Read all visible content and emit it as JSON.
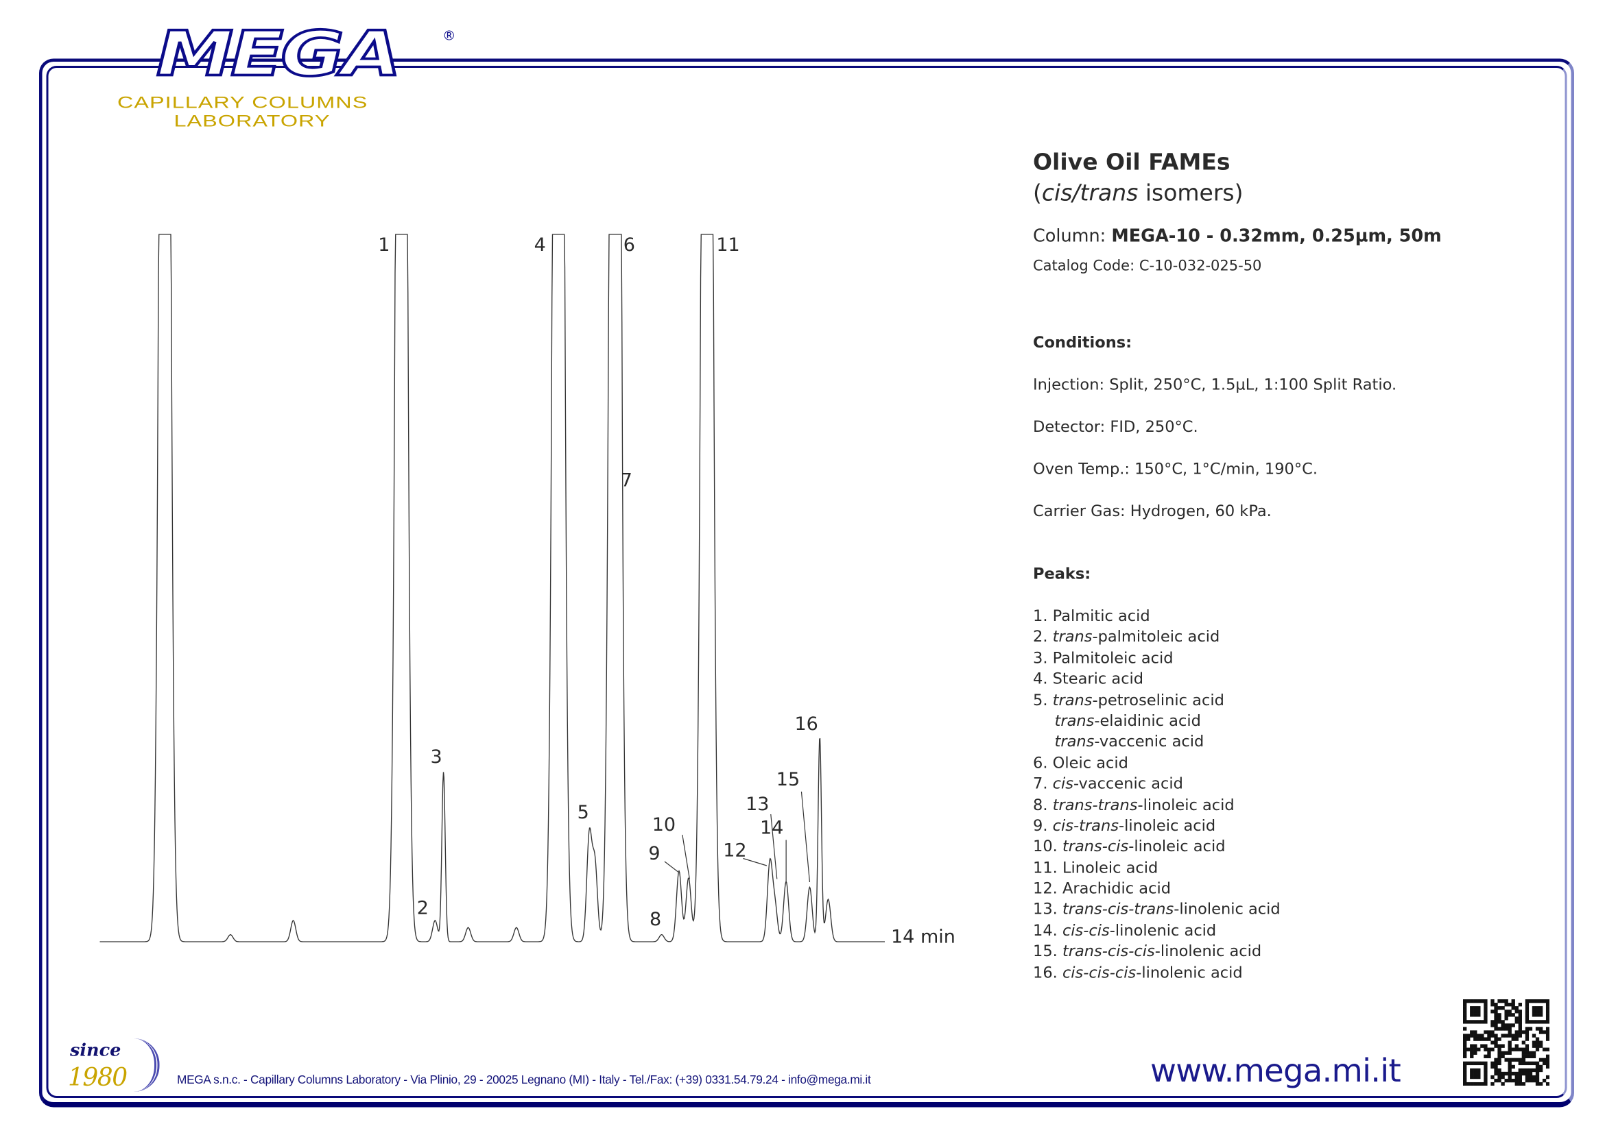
{
  "logo": {
    "brand": "MEGA",
    "registered": "®",
    "line1": "CAPILLARY COLUMNS",
    "line2": "LABORATORY"
  },
  "header": {
    "title": "Olive Oil FAMEs",
    "subtitle_open": "(",
    "subtitle_italic": "cis/trans",
    "subtitle_rest": " isomers)",
    "column_label": "Column: ",
    "column_value": "MEGA-10 - 0.32mm, 0.25µm, 50m",
    "catalog": "Catalog Code: C-10-032-025-50"
  },
  "conditions": {
    "heading": "Conditions:",
    "items": [
      "Injection: Split, 250°C, 1.5µL, 1:100 Split Ratio.",
      "Detector: FID, 250°C.",
      "Oven Temp.: 150°C, 1°C/min, 190°C.",
      "Carrier Gas: Hydrogen, 60 kPa."
    ]
  },
  "peaks_list": {
    "heading": "Peaks:",
    "items": [
      {
        "n": "1. ",
        "i": "",
        "t": "Palmitic acid"
      },
      {
        "n": "2. ",
        "i": "trans",
        "t": "-palmitoleic acid"
      },
      {
        "n": "3. ",
        "i": "",
        "t": "Palmitoleic acid"
      },
      {
        "n": "4. ",
        "i": "",
        "t": "Stearic acid"
      },
      {
        "n": "5. ",
        "i": "trans",
        "t": "-petroselinic acid"
      },
      {
        "n": "",
        "i": "trans",
        "t": "-elaidinic acid",
        "sub": true
      },
      {
        "n": "",
        "i": "trans",
        "t": "-vaccenic acid",
        "sub": true
      },
      {
        "n": "6. ",
        "i": "",
        "t": "Oleic acid"
      },
      {
        "n": "7. ",
        "i": "cis",
        "t": "-vaccenic acid"
      },
      {
        "n": "8. ",
        "i": "trans-trans",
        "t": "-linoleic acid"
      },
      {
        "n": "9. ",
        "i": "cis-trans",
        "t": "-linoleic acid"
      },
      {
        "n": "10. ",
        "i": "trans-cis",
        "t": "-linoleic acid"
      },
      {
        "n": "11. ",
        "i": "",
        "t": "Linoleic acid"
      },
      {
        "n": "12. ",
        "i": "",
        "t": "Arachidic acid"
      },
      {
        "n": "13. ",
        "i": "trans-cis-trans",
        "t": "-linolenic acid"
      },
      {
        "n": "14. ",
        "i": "cis-cis",
        "t": "-linolenic acid"
      },
      {
        "n": "15. ",
        "i": "trans-cis-cis",
        "t": "-linolenic acid"
      },
      {
        "n": "16. ",
        "i": "cis-cis-cis",
        "t": "-linolenic acid"
      }
    ]
  },
  "chart_data": {
    "type": "line",
    "xlabel_end": "14 min",
    "xlim": [
      0,
      14
    ],
    "ylabel": "",
    "grid": false,
    "note_heights": "relative to full scale; values above 1 are off-scale (clipped)",
    "peaks": [
      {
        "label": "",
        "time": 1.16,
        "height": 3
      },
      {
        "label": "",
        "time": 2.33,
        "height": 0.01
      },
      {
        "label": "",
        "time": 3.45,
        "height": 0.03
      },
      {
        "label": "1",
        "time": 5.38,
        "height": 3
      },
      {
        "label": "2",
        "time": 5.98,
        "height": 0.03
      },
      {
        "label": "3",
        "time": 6.13,
        "height": 0.24
      },
      {
        "label": "",
        "time": 6.57,
        "height": 0.02
      },
      {
        "label": "",
        "time": 7.43,
        "height": 0.02
      },
      {
        "label": "4",
        "time": 8.18,
        "height": 3
      },
      {
        "label": "5",
        "time": 8.73,
        "height": 0.15
      },
      {
        "label": "",
        "time": 8.83,
        "height": 0.11
      },
      {
        "label": "6",
        "time": 9.19,
        "height": 3
      },
      {
        "label": "7",
        "time": 9.25,
        "height": 0.64
      },
      {
        "label": "8",
        "time": 10.02,
        "height": 0.01
      },
      {
        "label": "9",
        "time": 10.33,
        "height": 0.1
      },
      {
        "label": "10",
        "time": 10.5,
        "height": 0.09
      },
      {
        "label": "11",
        "time": 10.83,
        "height": 3
      },
      {
        "label": "12",
        "time": 11.95,
        "height": 0.11
      },
      {
        "label": "13",
        "time": 12.04,
        "height": 0.05
      },
      {
        "label": "14",
        "time": 12.24,
        "height": 0.085
      },
      {
        "label": "15",
        "time": 12.66,
        "height": 0.077
      },
      {
        "label": "16",
        "time": 12.84,
        "height": 0.29
      },
      {
        "label": "",
        "time": 12.99,
        "height": 0.06
      }
    ]
  },
  "footer": {
    "since": "since",
    "year": "1980",
    "address": "MEGA s.n.c. - Capillary Columns Laboratory - Via Plinio, 29 - 20025 Legnano (MI) - Italy - Tel./Fax: (+39) 0331.54.79.24 - info@mega.mi.it",
    "website": "www.mega.mi.it"
  },
  "colors": {
    "navy": "#0a0a7a",
    "gold": "#c9a400",
    "text": "#2a2a2a"
  }
}
